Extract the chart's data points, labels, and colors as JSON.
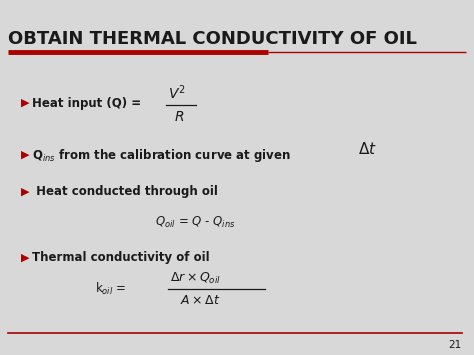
{
  "title": "OBTAIN THERMAL CONDUCTIVITY OF OIL",
  "title_fontsize": 13,
  "bg_color": "#d8d8d8",
  "red_color": "#aa0000",
  "text_color": "#1a1a1a",
  "slide_number": "21",
  "figsize": [
    4.74,
    3.55
  ],
  "dpi": 100
}
